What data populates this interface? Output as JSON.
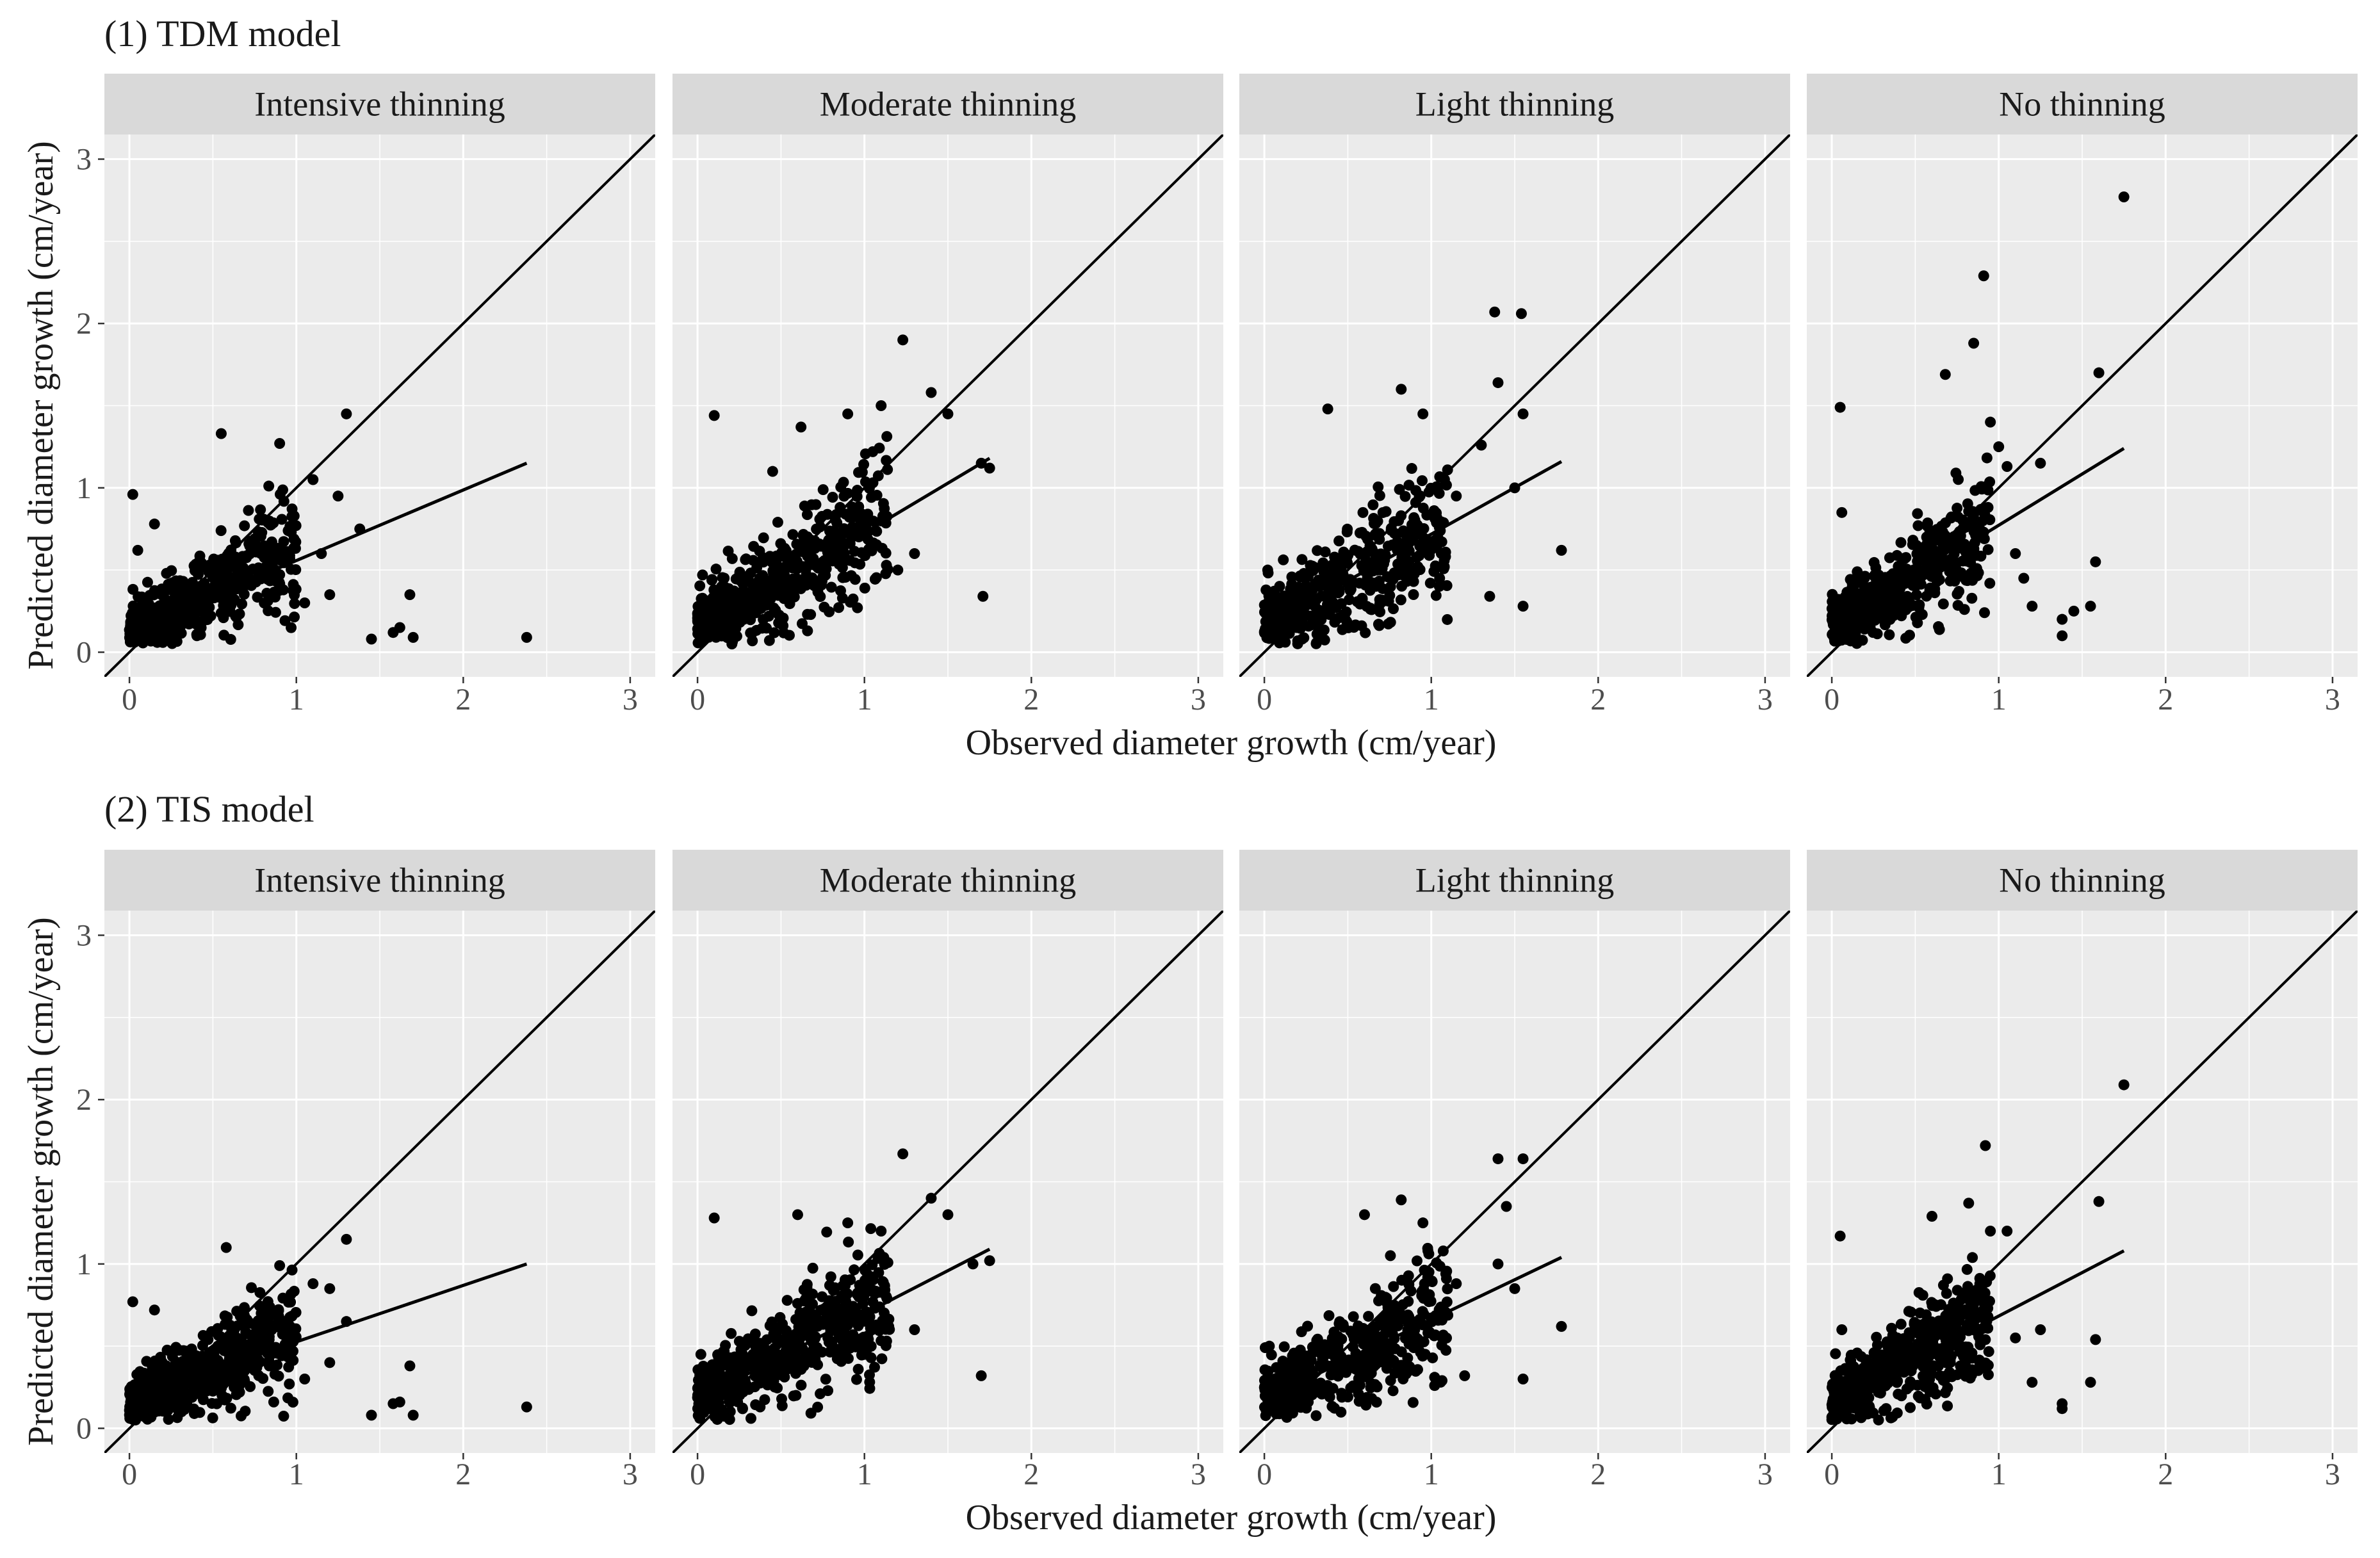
{
  "chart_data": [
    {
      "type": "scatter",
      "title": "(1) TDM model",
      "xlabel": "Observed diameter growth (cm/year)",
      "ylabel": "Predicted diameter growth (cm/year)",
      "xlim": [
        -0.15,
        3.15
      ],
      "ylim": [
        -0.15,
        3.15
      ],
      "xticks": [
        "0",
        "1",
        "2",
        "3"
      ],
      "yticks": [
        "0",
        "1",
        "2",
        "3"
      ],
      "reference_line": "y = x",
      "panels": [
        {
          "label": "Intensive thinning",
          "fit_line": {
            "x": [
              0.05,
              2.38
            ],
            "y": [
              0.15,
              1.15
            ]
          },
          "cloud": {
            "n": 520,
            "x_range": [
              0.0,
              1.0
            ],
            "intercept": 0.13,
            "slope": 0.52,
            "spread": 0.14,
            "seed": 11
          },
          "outliers": [
            [
              0.02,
              0.96
            ],
            [
              0.05,
              0.62
            ],
            [
              0.15,
              0.78
            ],
            [
              0.55,
              1.33
            ],
            [
              0.9,
              1.27
            ],
            [
              1.3,
              1.45
            ],
            [
              1.1,
              1.05
            ],
            [
              1.25,
              0.95
            ],
            [
              1.38,
              0.75
            ],
            [
              1.45,
              0.08
            ],
            [
              1.58,
              0.12
            ],
            [
              1.62,
              0.15
            ],
            [
              1.68,
              0.35
            ],
            [
              1.7,
              0.09
            ],
            [
              2.38,
              0.09
            ],
            [
              1.05,
              0.3
            ],
            [
              1.2,
              0.35
            ],
            [
              1.15,
              0.6
            ]
          ]
        },
        {
          "label": "Moderate thinning",
          "fit_line": {
            "x": [
              0.05,
              1.75
            ],
            "y": [
              0.15,
              1.18
            ]
          },
          "cloud": {
            "n": 560,
            "x_range": [
              0.0,
              1.15
            ],
            "intercept": 0.18,
            "slope": 0.55,
            "spread": 0.16,
            "seed": 23
          },
          "outliers": [
            [
              0.1,
              1.44
            ],
            [
              0.62,
              1.37
            ],
            [
              1.23,
              1.9
            ],
            [
              1.4,
              1.58
            ],
            [
              1.5,
              1.45
            ],
            [
              1.75,
              1.12
            ],
            [
              1.7,
              1.15
            ],
            [
              1.71,
              0.34
            ],
            [
              0.03,
              0.47
            ],
            [
              0.9,
              1.45
            ],
            [
              1.05,
              1.22
            ],
            [
              1.1,
              1.5
            ],
            [
              1.3,
              0.6
            ],
            [
              1.2,
              0.5
            ],
            [
              0.45,
              1.1
            ]
          ]
        },
        {
          "label": "Light thinning",
          "fit_line": {
            "x": [
              0.05,
              1.78
            ],
            "y": [
              0.18,
              1.16
            ]
          },
          "cloud": {
            "n": 460,
            "x_range": [
              0.0,
              1.1
            ],
            "intercept": 0.18,
            "slope": 0.5,
            "spread": 0.17,
            "seed": 37
          },
          "outliers": [
            [
              0.38,
              1.48
            ],
            [
              0.82,
              1.6
            ],
            [
              1.38,
              2.07
            ],
            [
              1.54,
              2.06
            ],
            [
              1.4,
              1.64
            ],
            [
              1.55,
              1.45
            ],
            [
              1.3,
              1.26
            ],
            [
              1.78,
              0.62
            ],
            [
              1.55,
              0.28
            ],
            [
              1.35,
              0.34
            ],
            [
              1.5,
              1.0
            ],
            [
              1.15,
              0.95
            ],
            [
              1.05,
              0.45
            ],
            [
              0.95,
              1.45
            ],
            [
              0.02,
              0.5
            ]
          ]
        },
        {
          "label": "No thinning",
          "fit_line": {
            "x": [
              0.05,
              1.75
            ],
            "y": [
              0.18,
              1.24
            ]
          },
          "cloud": {
            "n": 480,
            "x_range": [
              0.0,
              0.95
            ],
            "intercept": 0.16,
            "slope": 0.62,
            "spread": 0.16,
            "seed": 53
          },
          "outliers": [
            [
              0.05,
              1.49
            ],
            [
              0.68,
              1.69
            ],
            [
              0.85,
              1.88
            ],
            [
              0.91,
              2.29
            ],
            [
              1.75,
              2.77
            ],
            [
              1.6,
              1.7
            ],
            [
              0.95,
              1.4
            ],
            [
              1.0,
              1.25
            ],
            [
              1.05,
              1.13
            ],
            [
              1.1,
              0.6
            ],
            [
              1.15,
              0.45
            ],
            [
              1.2,
              0.28
            ],
            [
              1.38,
              0.2
            ],
            [
              1.38,
              0.1
            ],
            [
              1.45,
              0.25
            ],
            [
              1.55,
              0.28
            ],
            [
              1.58,
              0.55
            ],
            [
              0.06,
              0.85
            ],
            [
              1.25,
              1.15
            ]
          ]
        }
      ]
    },
    {
      "type": "scatter",
      "title": "(2) TIS model",
      "xlabel": "Observed diameter growth (cm/year)",
      "ylabel": "Predicted diameter growth (cm/year)",
      "xlim": [
        -0.15,
        3.15
      ],
      "ylim": [
        -0.15,
        3.15
      ],
      "xticks": [
        "0",
        "1",
        "2",
        "3"
      ],
      "yticks": [
        "0",
        "1",
        "2",
        "3"
      ],
      "reference_line": "y = x",
      "panels": [
        {
          "label": "Intensive thinning",
          "fit_line": {
            "x": [
              0.05,
              2.38
            ],
            "y": [
              0.2,
              1.0
            ]
          },
          "cloud": {
            "n": 560,
            "x_range": [
              0.0,
              1.0
            ],
            "intercept": 0.15,
            "slope": 0.45,
            "spread": 0.13,
            "seed": 71
          },
          "outliers": [
            [
              0.02,
              0.77
            ],
            [
              0.15,
              0.72
            ],
            [
              0.58,
              1.1
            ],
            [
              0.9,
              0.99
            ],
            [
              1.3,
              1.15
            ],
            [
              1.1,
              0.88
            ],
            [
              1.2,
              0.85
            ],
            [
              1.3,
              0.65
            ],
            [
              1.45,
              0.08
            ],
            [
              1.58,
              0.15
            ],
            [
              1.62,
              0.16
            ],
            [
              1.68,
              0.38
            ],
            [
              1.7,
              0.08
            ],
            [
              2.38,
              0.13
            ],
            [
              1.05,
              0.3
            ],
            [
              1.2,
              0.4
            ]
          ]
        },
        {
          "label": "Moderate thinning",
          "fit_line": {
            "x": [
              0.05,
              1.75
            ],
            "y": [
              0.2,
              1.09
            ]
          },
          "cloud": {
            "n": 560,
            "x_range": [
              0.0,
              1.15
            ],
            "intercept": 0.2,
            "slope": 0.5,
            "spread": 0.15,
            "seed": 89
          },
          "outliers": [
            [
              0.1,
              1.28
            ],
            [
              0.6,
              1.3
            ],
            [
              1.23,
              1.67
            ],
            [
              1.4,
              1.4
            ],
            [
              1.5,
              1.3
            ],
            [
              1.75,
              1.02
            ],
            [
              1.7,
              0.32
            ],
            [
              1.65,
              1.0
            ],
            [
              1.1,
              1.2
            ],
            [
              1.3,
              0.6
            ],
            [
              0.02,
              0.45
            ],
            [
              0.9,
              1.25
            ],
            [
              1.0,
              0.5
            ]
          ]
        },
        {
          "label": "Light thinning",
          "fit_line": {
            "x": [
              0.05,
              1.78
            ],
            "y": [
              0.2,
              1.04
            ]
          },
          "cloud": {
            "n": 460,
            "x_range": [
              0.0,
              1.1
            ],
            "intercept": 0.2,
            "slope": 0.45,
            "spread": 0.17,
            "seed": 97
          },
          "outliers": [
            [
              0.6,
              1.3
            ],
            [
              0.82,
              1.39
            ],
            [
              1.4,
              1.64
            ],
            [
              1.55,
              1.64
            ],
            [
              1.45,
              1.35
            ],
            [
              1.4,
              1.0
            ],
            [
              1.5,
              0.85
            ],
            [
              1.78,
              0.62
            ],
            [
              1.55,
              0.3
            ],
            [
              1.2,
              0.32
            ],
            [
              1.15,
              0.88
            ],
            [
              0.95,
              1.25
            ],
            [
              0.03,
              0.5
            ]
          ]
        },
        {
          "label": "No thinning",
          "fit_line": {
            "x": [
              0.05,
              1.75
            ],
            "y": [
              0.18,
              1.08
            ]
          },
          "cloud": {
            "n": 480,
            "x_range": [
              0.0,
              0.95
            ],
            "intercept": 0.16,
            "slope": 0.55,
            "spread": 0.15,
            "seed": 131
          },
          "outliers": [
            [
              0.05,
              1.17
            ],
            [
              0.6,
              1.29
            ],
            [
              0.82,
              1.37
            ],
            [
              0.92,
              1.72
            ],
            [
              1.75,
              2.09
            ],
            [
              1.6,
              1.38
            ],
            [
              0.95,
              1.2
            ],
            [
              1.05,
              1.2
            ],
            [
              1.1,
              0.55
            ],
            [
              1.2,
              0.28
            ],
            [
              1.38,
              0.15
            ],
            [
              1.38,
              0.12
            ],
            [
              1.55,
              0.28
            ],
            [
              1.58,
              0.54
            ],
            [
              1.25,
              0.6
            ],
            [
              0.06,
              0.6
            ]
          ]
        }
      ]
    }
  ]
}
